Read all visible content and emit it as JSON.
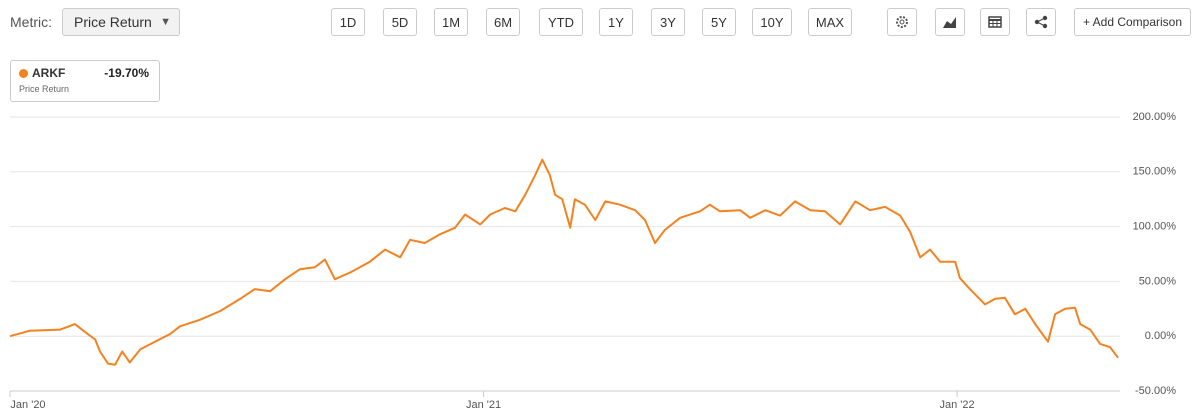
{
  "toolbar": {
    "metric_label": "Metric:",
    "metric_value": "Price Return",
    "ranges": [
      "1D",
      "5D",
      "1M",
      "6M",
      "YTD",
      "1Y",
      "3Y",
      "5Y",
      "10Y",
      "MAX"
    ],
    "add_button": "+ Add Comparison"
  },
  "legend": {
    "change": "-19.70%",
    "metric": "Price Return"
  },
  "chart_data": {
    "type": "line",
    "x": [
      2020.0,
      2020.042,
      2020.106,
      2020.137,
      2020.158,
      2020.18,
      2020.19,
      2020.207,
      2020.222,
      2020.237,
      2020.253,
      2020.275,
      2020.306,
      2020.338,
      2020.359,
      2020.401,
      2020.444,
      2020.486,
      2020.517,
      2020.549,
      2020.581,
      2020.612,
      2020.644,
      2020.665,
      2020.686,
      2020.718,
      2020.76,
      2020.792,
      2020.824,
      2020.845,
      2020.876,
      2020.908,
      2020.94,
      2020.961,
      2020.993,
      2021.014,
      2021.045,
      2021.067,
      2021.088,
      2021.109,
      2021.124,
      2021.14,
      2021.151,
      2021.166,
      2021.183,
      2021.193,
      2021.214,
      2021.236,
      2021.257,
      2021.288,
      2021.32,
      2021.341,
      2021.362,
      2021.383,
      2021.415,
      2021.457,
      2021.478,
      2021.499,
      2021.542,
      2021.563,
      2021.595,
      2021.626,
      2021.658,
      2021.69,
      2021.721,
      2021.753,
      2021.785,
      2021.816,
      2021.848,
      2021.88,
      2021.901,
      2021.922,
      2021.943,
      2021.964,
      2021.996,
      2022.006,
      2022.027,
      2022.059,
      2022.08,
      2022.101,
      2022.122,
      2022.144,
      2022.165,
      2022.192,
      2022.207,
      2022.228,
      2022.249,
      2022.26,
      2022.281,
      2022.302,
      2022.323,
      2022.34
    ],
    "series": [
      {
        "name": "ARKF",
        "color": "#f58220",
        "values": [
          0,
          5,
          6,
          11,
          4,
          -3,
          -14,
          -25,
          -26,
          -14,
          -24,
          -12,
          -5,
          2,
          9,
          15,
          23,
          34,
          43,
          41,
          52,
          61,
          63,
          70,
          52,
          58,
          68,
          79,
          72,
          88,
          85,
          93,
          99,
          111,
          102,
          111,
          117,
          114,
          129,
          147,
          161,
          147,
          129,
          125,
          99,
          125,
          120,
          106,
          123,
          120,
          115,
          106,
          85,
          97,
          108,
          114,
          120,
          114,
          115,
          108,
          115,
          110,
          123,
          115,
          114,
          102,
          123,
          115,
          118,
          110,
          95,
          72,
          79,
          68,
          68,
          53,
          43,
          29,
          34,
          35,
          20,
          25,
          11,
          -5,
          20,
          25,
          26,
          11,
          6,
          -7,
          -10,
          -19.7
        ]
      }
    ],
    "xlim": [
      2020,
      2022.344
    ],
    "xticks": [
      {
        "value": 2020,
        "label": "Jan '20"
      },
      {
        "value": 2021,
        "label": "Jan '21"
      },
      {
        "value": 2022,
        "label": "Jan '22"
      }
    ],
    "ylim": [
      -50,
      200
    ],
    "yticks": [
      {
        "value": -50,
        "label": "-50.00%"
      },
      {
        "value": 0,
        "label": "0.00%"
      },
      {
        "value": 50,
        "label": "50.00%"
      },
      {
        "value": 100,
        "label": "100.00%"
      },
      {
        "value": 150,
        "label": "150.00%"
      },
      {
        "value": 200,
        "label": "200.00%"
      }
    ],
    "grid": true
  }
}
